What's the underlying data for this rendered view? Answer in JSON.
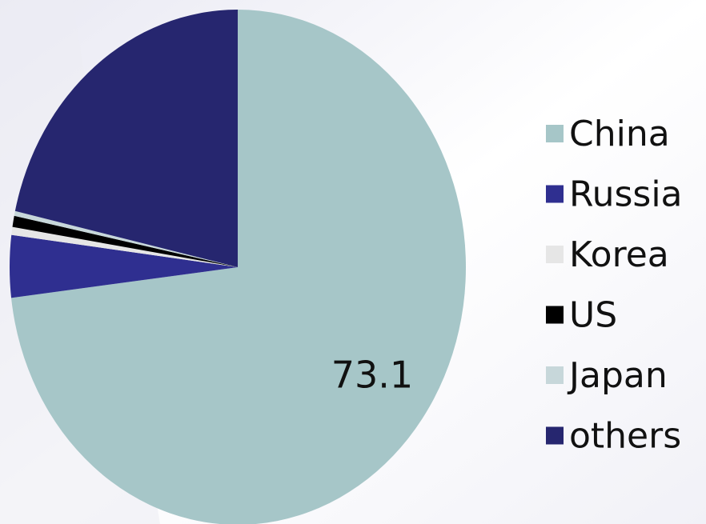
{
  "chart_data": {
    "type": "pie",
    "categories": [
      "China",
      "Russia",
      "Korea",
      "US",
      "Japan",
      "others"
    ],
    "values": [
      73.1,
      3.9,
      0.5,
      0.7,
      0.3,
      21.5
    ],
    "colors": [
      "#a6c6c8",
      "#2f2f90",
      "#e6e6e6",
      "#000000",
      "#c7d7da",
      "#26266f"
    ],
    "data_labels": [
      0
    ],
    "legend": "right"
  }
}
